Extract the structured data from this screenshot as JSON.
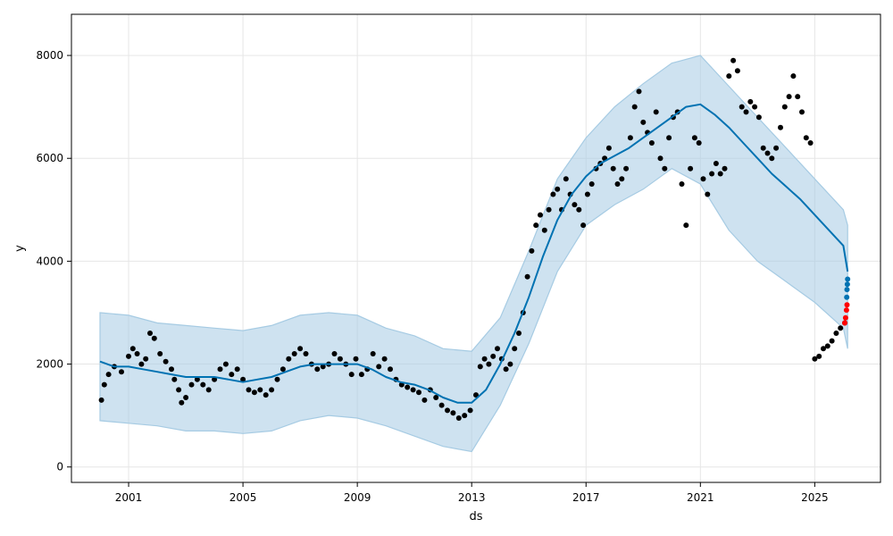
{
  "chart_data": {
    "type": "line",
    "title": "",
    "xlabel": "ds",
    "ylabel": "y",
    "xlim": [
      1999.0,
      2027.3
    ],
    "ylim": [
      -300,
      8800
    ],
    "xticks": [
      2001,
      2005,
      2009,
      2013,
      2017,
      2021,
      2025
    ],
    "xtick_labels": [
      "2001",
      "2005",
      "2009",
      "2013",
      "2017",
      "2021",
      "2025"
    ],
    "yticks": [
      0,
      2000,
      4000,
      6000,
      8000
    ],
    "ytick_labels": [
      "0",
      "2000",
      "4000",
      "6000",
      "8000"
    ],
    "grid": true,
    "legend": "none",
    "colors": {
      "observed": "#000000",
      "forecast_line": "#0072B2",
      "interval_fill": "#A6CBE3",
      "highlight": "#FF0000"
    },
    "series": [
      {
        "kind": "scatter",
        "x": [
          2000.05,
          2000.15,
          2000.3,
          2000.5,
          2000.75,
          2001.0,
          2001.15,
          2001.3,
          2001.45,
          2001.6,
          2001.75,
          2001.9,
          2002.1,
          2002.3,
          2002.5,
          2002.6,
          2002.75,
          2002.85,
          2003.0,
          2003.2,
          2003.4,
          2003.6,
          2003.8,
          2004.0,
          2004.2,
          2004.4,
          2004.6,
          2004.8,
          2005.0,
          2005.2,
          2005.4,
          2005.6,
          2005.8,
          2006.0,
          2006.2,
          2006.4,
          2006.6,
          2006.8,
          2007.0,
          2007.2,
          2007.4,
          2007.6,
          2007.8,
          2008.0,
          2008.2,
          2008.4,
          2008.6,
          2008.8,
          2008.95,
          2009.15,
          2009.35,
          2009.55,
          2009.75,
          2009.95,
          2010.15,
          2010.35,
          2010.55,
          2010.75,
          2010.95,
          2011.15,
          2011.35,
          2011.55,
          2011.75,
          2011.95,
          2012.15,
          2012.35,
          2012.55,
          2012.75,
          2012.95,
          2013.15,
          2013.3,
          2013.45,
          2013.6,
          2013.75,
          2013.9,
          2014.05,
          2014.2,
          2014.35,
          2014.5,
          2014.65,
          2014.8,
          2014.95,
          2015.1,
          2015.25,
          2015.4,
          2015.55,
          2015.7,
          2015.85,
          2016.0,
          2016.15,
          2016.3,
          2016.45,
          2016.6,
          2016.75,
          2016.9,
          2017.05,
          2017.2,
          2017.35,
          2017.5,
          2017.65,
          2017.8,
          2017.95,
          2018.1,
          2018.25,
          2018.4,
          2018.55,
          2018.7,
          2018.85,
          2019.0,
          2019.15,
          2019.3,
          2019.45,
          2019.6,
          2019.75,
          2019.9,
          2020.05,
          2020.2,
          2020.35,
          2020.5,
          2020.65,
          2020.8,
          2020.95,
          2021.1,
          2021.25,
          2021.4,
          2021.55,
          2021.7,
          2021.85,
          2022.0,
          2022.15,
          2022.3,
          2022.45,
          2022.6,
          2022.75,
          2022.9,
          2023.05,
          2023.2,
          2023.35,
          2023.5,
          2023.65,
          2023.8,
          2023.95,
          2024.1,
          2024.25,
          2024.4,
          2024.55,
          2024.7,
          2024.85,
          2025.0,
          2025.15,
          2025.3,
          2025.45,
          2025.6,
          2025.75,
          2025.9,
          2026.05
        ],
        "y": [
          1300,
          1600,
          1800,
          1950,
          1850,
          2150,
          2300,
          2200,
          2000,
          2100,
          2600,
          2500,
          2200,
          2050,
          1900,
          1700,
          1500,
          1250,
          1350,
          1600,
          1700,
          1600,
          1500,
          1700,
          1900,
          2000,
          1800,
          1900,
          1700,
          1500,
          1450,
          1500,
          1400,
          1500,
          1700,
          1900,
          2100,
          2200,
          2300,
          2200,
          2000,
          1900,
          1950,
          2000,
          2200,
          2100,
          2000,
          1800,
          2100,
          1800,
          1900,
          2200,
          1950,
          2100,
          1900,
          1700,
          1600,
          1550,
          1500,
          1450,
          1300,
          1500,
          1350,
          1200,
          1100,
          1050,
          950,
          1000,
          1100,
          1400,
          1950,
          2100,
          2000,
          2150,
          2300,
          2100,
          1900,
          2000,
          2300,
          2600,
          3000,
          3700,
          4200,
          4700,
          4900,
          4600,
          5000,
          5300,
          5400,
          5000,
          5600,
          5300,
          5100,
          5000,
          4700,
          5300,
          5500,
          5800,
          5900,
          6000,
          6200,
          5800,
          5500,
          5600,
          5800,
          6400,
          7000,
          7300,
          6700,
          6500,
          6300,
          6900,
          6000,
          5800,
          6400,
          6800,
          6900,
          5500,
          4700,
          5800,
          6400,
          6300,
          5600,
          5300,
          5700,
          5900,
          5700,
          5800,
          7600,
          7900,
          7700,
          7000,
          6900,
          7100,
          7000,
          6800,
          6200,
          6100,
          6000,
          6200,
          6600,
          7000,
          7200,
          7600,
          7200,
          6900,
          6400,
          6300,
          2100,
          2150,
          2300,
          2350,
          2450,
          2600,
          2700,
          2800
        ],
        "color": "#000000"
      },
      {
        "kind": "line",
        "name": "",
        "x": [
          2000.0,
          2000.5,
          2001.0,
          2001.5,
          2002.0,
          2002.5,
          2003.0,
          2003.5,
          2004.0,
          2004.5,
          2005.0,
          2005.5,
          2006.0,
          2006.5,
          2007.0,
          2007.5,
          2008.0,
          2008.5,
          2009.0,
          2009.5,
          2010.0,
          2010.5,
          2011.0,
          2011.5,
          2012.0,
          2012.5,
          2013.0,
          2013.5,
          2014.0,
          2014.5,
          2015.0,
          2015.5,
          2016.0,
          2016.5,
          2017.0,
          2017.5,
          2018.0,
          2018.5,
          2019.0,
          2019.5,
          2020.0,
          2020.5,
          2021.0,
          2021.5,
          2022.0,
          2022.5,
          2023.0,
          2023.5,
          2024.0,
          2024.5,
          2025.0,
          2025.5,
          2026.0,
          2026.15
        ],
        "y": [
          2050,
          1950,
          1950,
          1900,
          1850,
          1800,
          1750,
          1750,
          1750,
          1700,
          1650,
          1700,
          1750,
          1850,
          1950,
          2000,
          2000,
          2000,
          2000,
          1900,
          1750,
          1650,
          1600,
          1500,
          1350,
          1250,
          1250,
          1500,
          2000,
          2600,
          3300,
          4100,
          4800,
          5300,
          5650,
          5900,
          6050,
          6200,
          6400,
          6600,
          6800,
          7000,
          7050,
          6850,
          6600,
          6300,
          6000,
          5700,
          5450,
          5200,
          4900,
          4600,
          4300,
          3800
        ],
        "color": "#0072B2"
      },
      {
        "kind": "interval",
        "x": [
          2000.0,
          2001.0,
          2002.0,
          2003.0,
          2004.0,
          2005.0,
          2006.0,
          2007.0,
          2008.0,
          2009.0,
          2010.0,
          2011.0,
          2012.0,
          2013.0,
          2014.0,
          2015.0,
          2016.0,
          2017.0,
          2018.0,
          2019.0,
          2020.0,
          2021.0,
          2022.0,
          2023.0,
          2024.0,
          2025.0,
          2026.0,
          2026.15
        ],
        "upper": [
          3000,
          2950,
          2800,
          2750,
          2700,
          2650,
          2750,
          2950,
          3000,
          2950,
          2700,
          2550,
          2300,
          2250,
          2900,
          4200,
          5600,
          6400,
          7000,
          7450,
          7850,
          8000,
          7400,
          6800,
          6200,
          5600,
          5000,
          4700
        ],
        "lower": [
          900,
          850,
          800,
          700,
          700,
          650,
          700,
          900,
          1000,
          950,
          800,
          600,
          400,
          300,
          1200,
          2400,
          3800,
          4700,
          5100,
          5400,
          5800,
          5500,
          4600,
          4000,
          3600,
          3200,
          2700,
          2300
        ],
        "color": "#A6CBE3"
      },
      {
        "kind": "scatter",
        "name": "",
        "x": [
          2026.05,
          2026.08,
          2026.11,
          2026.13
        ],
        "y": [
          2800,
          2900,
          3050,
          3150
        ],
        "color": "#FF0000"
      },
      {
        "kind": "scatter",
        "name": "",
        "x": [
          2026.12,
          2026.13,
          2026.14,
          2026.15
        ],
        "y": [
          3300,
          3450,
          3550,
          3650
        ],
        "color": "#0072B2"
      }
    ]
  }
}
